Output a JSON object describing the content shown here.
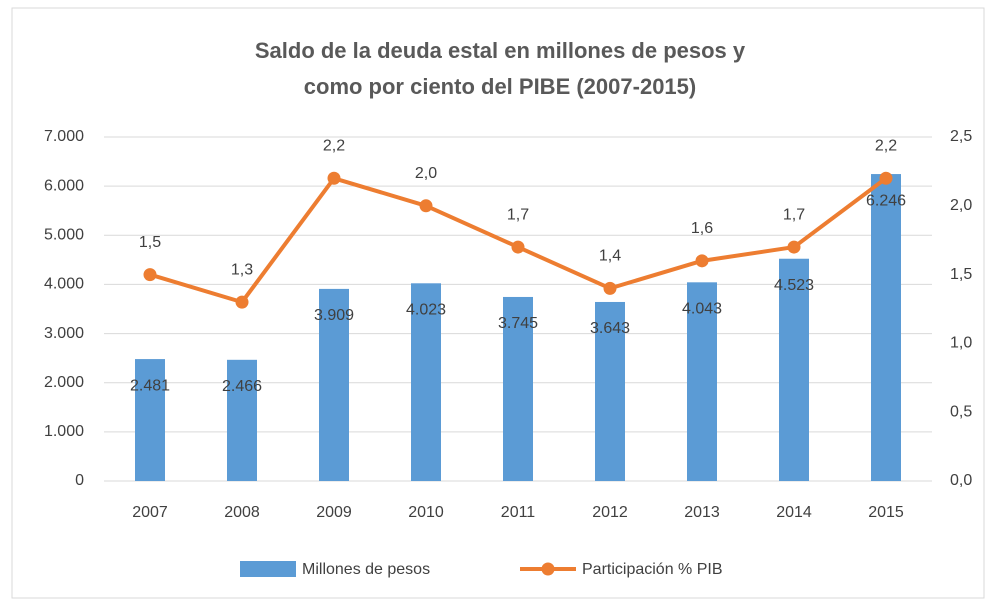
{
  "chart_data": {
    "type": "combo",
    "title": [
      "Saldo de la deuda estal en millones de pesos y",
      "como por ciento del PIBE (2007-2015)"
    ],
    "categories": [
      "2007",
      "2008",
      "2009",
      "2010",
      "2011",
      "2012",
      "2013",
      "2014",
      "2015"
    ],
    "series": [
      {
        "name": "Millones de pesos",
        "type": "bar",
        "color": "#5b9bd5",
        "values": [
          2481,
          2466,
          3909,
          4023,
          3745,
          3643,
          4043,
          4523,
          6246
        ],
        "value_labels": [
          "2.481",
          "2.466",
          "3.909",
          "4.023",
          "3.745",
          "3.643",
          "4.043",
          "4.523",
          "6.246"
        ]
      },
      {
        "name": "Participación % PIB",
        "type": "line",
        "axis": "y2",
        "color": "#ed7d31",
        "values": [
          1.5,
          1.3,
          2.2,
          2.0,
          1.7,
          1.4,
          1.6,
          1.7,
          2.2
        ],
        "value_labels": [
          "1,5",
          "1,3",
          "2,2",
          "2,0",
          "1,7",
          "1,4",
          "1,6",
          "1,7",
          "2,2"
        ]
      }
    ],
    "ylim": [
      0,
      7000
    ],
    "yticks": [
      0,
      {
        "value": 1000,
        "label": "1.000"
      },
      {
        "value": 2000,
        "label": "2.000"
      },
      {
        "value": 3000,
        "label": "3.000"
      },
      {
        "value": 4000,
        "label": "4.000"
      },
      {
        "value": 5000,
        "label": "5.000"
      },
      {
        "value": 6000,
        "label": "6.000"
      },
      {
        "value": 7000,
        "label": "7.000"
      }
    ],
    "y2lim": [
      0,
      2.5
    ],
    "y2ticks": [
      {
        "value": 0,
        "label": "0,0"
      },
      {
        "value": 0.5,
        "label": "0,5"
      },
      {
        "value": 1.0,
        "label": "1,0"
      },
      {
        "value": 1.5,
        "label": "1,5"
      },
      {
        "value": 2.0,
        "label": "2,0"
      },
      {
        "value": 2.5,
        "label": "2,5"
      }
    ],
    "grid": true,
    "legend": "bottom"
  }
}
